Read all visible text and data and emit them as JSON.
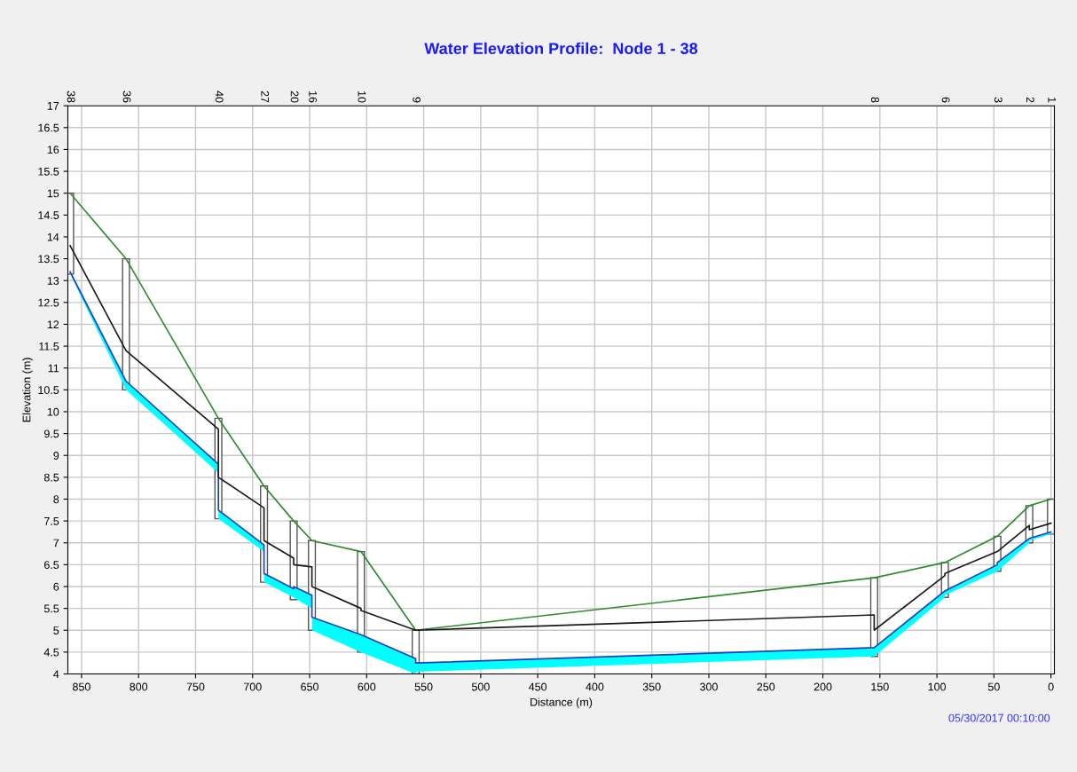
{
  "chart_data": {
    "type": "line",
    "title": "Water Elevation Profile:  Node 1 - 38",
    "xlabel": "Distance (m)",
    "ylabel": "Elevation (m)",
    "xlim": [
      862,
      -3
    ],
    "xticks": [
      850,
      800,
      750,
      700,
      650,
      600,
      550,
      500,
      450,
      400,
      350,
      300,
      250,
      200,
      150,
      100,
      50,
      0
    ],
    "ylim": [
      4,
      17
    ],
    "yticks": [
      4,
      4.5,
      5,
      5.5,
      6,
      6.5,
      7,
      7.5,
      8,
      8.5,
      9,
      9.5,
      10,
      10.5,
      11,
      11.5,
      12,
      12.5,
      13,
      13.5,
      14,
      14.5,
      15,
      15.5,
      16,
      16.5,
      17
    ],
    "grid": true,
    "annotations": [
      "05/30/2017 00:10:00",
      "38",
      "36",
      "40",
      "27",
      "20",
      "16",
      "10",
      "9",
      "8",
      "6",
      "3",
      "2",
      "1"
    ],
    "series": [
      {
        "color": "#2e8b2e",
        "x": [
          860,
          811,
          730,
          690,
          664,
          648,
          605,
          557,
          155,
          93,
          47,
          19,
          0
        ],
        "values": [
          15.0,
          13.5,
          9.85,
          8.3,
          7.5,
          7.05,
          6.8,
          5.0,
          6.2,
          6.55,
          7.15,
          7.85,
          8.0
        ]
      },
      {
        "color": "#1f3fbf",
        "x": [
          860,
          811,
          811,
          730,
          730,
          690,
          690,
          664,
          664,
          648,
          648,
          605,
          605,
          557,
          557,
          155,
          155,
          93,
          93,
          47,
          47,
          19,
          19,
          0
        ],
        "values": [
          13.2,
          10.7,
          10.7,
          8.8,
          7.75,
          6.95,
          6.3,
          5.95,
          6.0,
          5.8,
          5.3,
          4.9,
          4.9,
          4.35,
          4.25,
          4.6,
          4.6,
          5.9,
          5.9,
          6.5,
          6.55,
          7.1,
          7.1,
          7.25
        ],
        "upper": [
          13.2,
          10.7,
          10.7,
          8.8,
          7.75,
          6.95,
          6.3,
          5.95,
          6.0,
          5.8,
          5.3,
          4.9,
          4.9,
          4.35,
          4.25,
          4.6,
          4.6,
          5.9,
          5.9,
          6.5,
          6.55,
          7.1,
          7.1,
          7.25
        ],
        "lower": [
          13.15,
          10.5,
          10.5,
          8.6,
          7.55,
          6.8,
          6.1,
          5.75,
          5.75,
          5.5,
          5.0,
          4.5,
          4.5,
          4.0,
          4.05,
          4.4,
          4.4,
          5.75,
          5.8,
          6.35,
          6.35,
          7.0,
          7.05,
          7.2
        ]
      },
      {
        "color": "#1a1a1a",
        "x": [
          860,
          811,
          811,
          730,
          730,
          690,
          690,
          664,
          664,
          648,
          648,
          605,
          605,
          557,
          557,
          155,
          155,
          93,
          93,
          47,
          47,
          19,
          19,
          0
        ],
        "values": [
          13.8,
          11.4,
          11.4,
          9.6,
          8.5,
          7.8,
          7.05,
          6.65,
          6.5,
          6.45,
          6.0,
          5.5,
          5.45,
          5.0,
          5.0,
          5.35,
          5.0,
          6.25,
          6.3,
          6.8,
          6.8,
          7.4,
          7.3,
          7.45
        ]
      },
      {
        "type": "bar",
        "color": "#ffffff",
        "x": [
          860,
          811,
          730,
          690,
          664,
          648,
          605,
          557,
          155,
          93,
          47,
          19,
          0
        ],
        "base": [
          13.15,
          10.5,
          7.55,
          6.1,
          5.7,
          5.0,
          4.5,
          4.0,
          4.4,
          5.75,
          6.35,
          7.0,
          7.2
        ],
        "values": [
          1.85,
          3.0,
          2.3,
          2.2,
          1.8,
          2.05,
          2.3,
          1.0,
          1.8,
          0.8,
          0.8,
          0.85,
          0.8
        ]
      }
    ]
  }
}
